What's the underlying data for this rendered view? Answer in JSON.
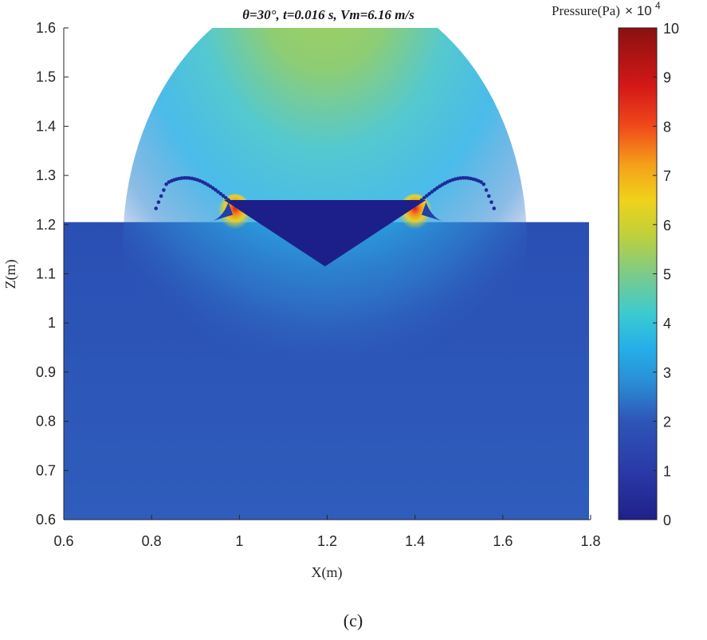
{
  "chart_data": {
    "type": "heatmap",
    "title": "θ=30°,  t=0.016 s,  Vm=6.16 m/s",
    "xlabel": "X(m)",
    "ylabel": "Z(m)",
    "xlim": [
      0.6,
      1.8
    ],
    "ylim": [
      0.6,
      1.6
    ],
    "x_ticks": [
      "0.6",
      "0.8",
      "1",
      "1.2",
      "1.4",
      "1.6",
      "1.8"
    ],
    "y_ticks": [
      "0.6",
      "0.7",
      "0.8",
      "0.9",
      "1",
      "1.1",
      "1.2",
      "1.3",
      "1.4",
      "1.5",
      "1.6"
    ],
    "free_surface_z": 1.205,
    "wedge": {
      "left": [
        0.965,
        1.25
      ],
      "apex": [
        1.195,
        1.115
      ],
      "right": [
        1.425,
        1.25
      ]
    },
    "peak_pressure_points": [
      [
        0.99,
        1.22
      ],
      [
        1.4,
        1.22
      ]
    ],
    "colorbar": {
      "label": "Pressure(Pa)",
      "multiplier_base": "× 10",
      "multiplier_exp": "4",
      "range": [
        0,
        10
      ],
      "ticks": [
        "0",
        "1",
        "2",
        "3",
        "4",
        "5",
        "6",
        "7",
        "8",
        "9",
        "10"
      ],
      "colormap": "jet"
    },
    "grid": false
  },
  "caption": "(c)"
}
